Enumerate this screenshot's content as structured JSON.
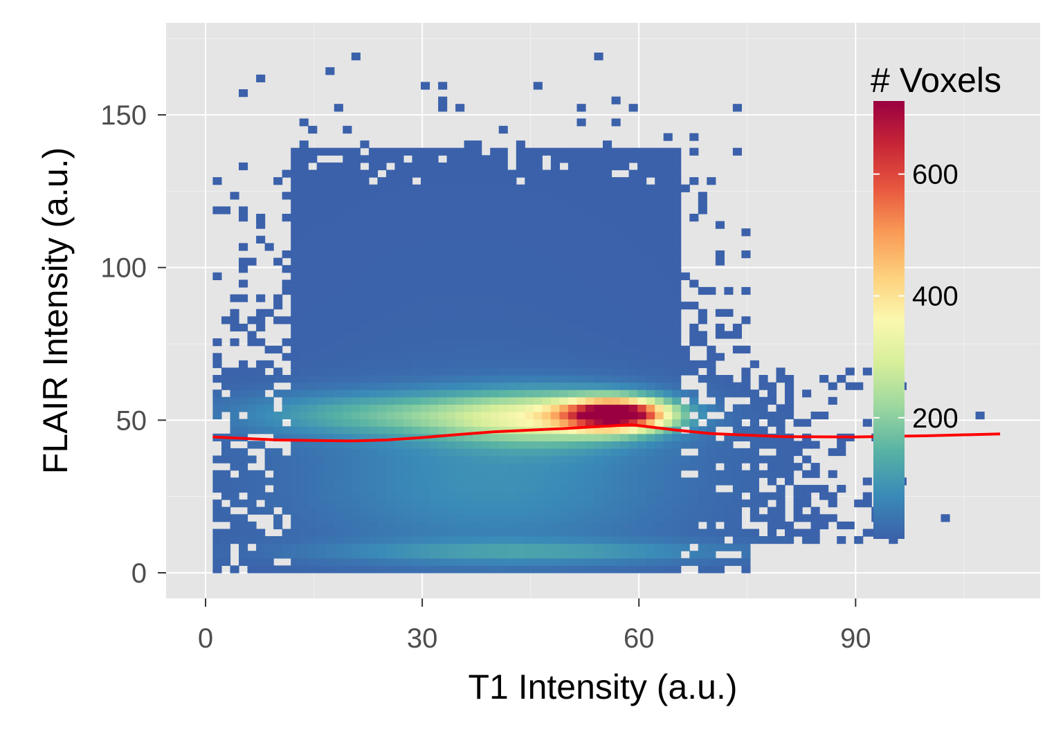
{
  "chart_data": {
    "type": "heatmap",
    "title": "",
    "xlabel": "T1 Intensity (a.u.)",
    "ylabel": "FLAIR Intensity (a.u.)",
    "xlim": [
      -9,
      115
    ],
    "ylim": [
      -8,
      180
    ],
    "x_ticks": [
      0,
      30,
      60,
      90
    ],
    "y_ticks": [
      0,
      50,
      100,
      150
    ],
    "x_tick_labels": [
      "0",
      "30",
      "60",
      "90"
    ],
    "y_tick_labels": [
      "0",
      "50",
      "100",
      "150"
    ],
    "grid": true,
    "panel_background": "#e5e5e5",
    "legend": {
      "title": "# Voxels",
      "position": "top-right",
      "range": [
        1,
        720
      ],
      "breaks": [
        200,
        400,
        600
      ],
      "break_labels": [
        "200",
        "400",
        "600"
      ],
      "palette": [
        "#3b61aa",
        "#3a8bb8",
        "#57b2a4",
        "#9bd79f",
        "#d6ee9a",
        "#fbf8b0",
        "#fdd07c",
        "#f99a56",
        "#e8573f",
        "#c72636",
        "#9a0041"
      ]
    },
    "density_clusters": [
      {
        "x": 57,
        "y": 52,
        "sx": 5,
        "sy": 3.5,
        "peak": 720
      },
      {
        "x": 47,
        "y": 51,
        "sx": 10,
        "sy": 6,
        "peak": 260
      },
      {
        "x": 25,
        "y": 52,
        "sx": 14,
        "sy": 5,
        "peak": 130
      },
      {
        "x": 40,
        "y": 30,
        "sx": 18,
        "sy": 18,
        "peak": 80
      },
      {
        "x": 45,
        "y": 7,
        "sx": 20,
        "sy": 2.5,
        "peak": 90
      },
      {
        "x": 36,
        "y": 70,
        "sx": 20,
        "sy": 38,
        "peak": 6
      }
    ],
    "smooth_series": {
      "name": "smooth",
      "color": "#ff0000",
      "x": [
        1,
        10,
        20,
        25,
        30,
        35,
        40,
        50,
        55,
        59,
        65,
        70,
        80,
        90,
        100,
        110
      ],
      "y": [
        44.5,
        43.5,
        43.2,
        43.5,
        44.3,
        45.3,
        46.2,
        47.3,
        48.0,
        48.5,
        46.8,
        45.6,
        44.6,
        44.5,
        44.9,
        45.5
      ]
    }
  }
}
